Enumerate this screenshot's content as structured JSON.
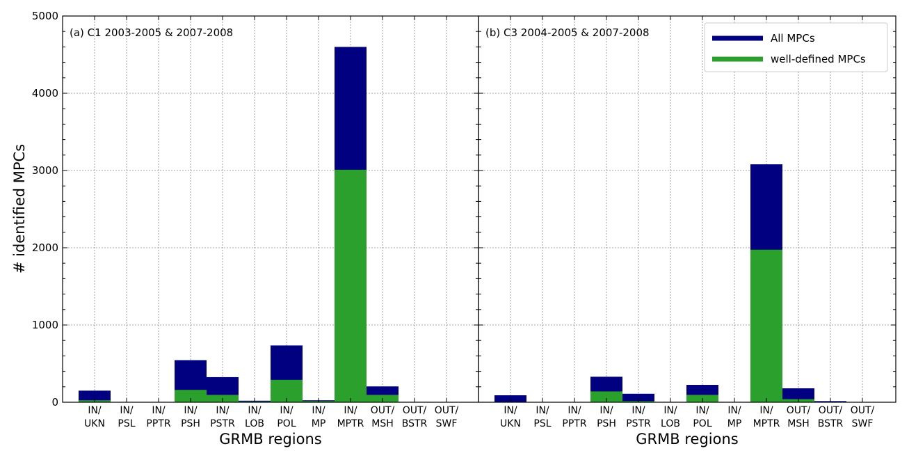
{
  "chart_data": {
    "type": "bar",
    "stacked": "overlay",
    "ylabel": "# identified MPCs",
    "ylim": [
      0,
      5000
    ],
    "yticks": [
      0,
      1000,
      2000,
      3000,
      4000,
      5000
    ],
    "grid": true,
    "legend_placement": "top-right of panel (b)",
    "colors": {
      "all": "#000080",
      "well_defined": "#2ca02c"
    },
    "legend": [
      "All MPCs",
      "well-defined MPCs"
    ],
    "panels": [
      {
        "title": "(a) C1 2003-2005 & 2007-2008",
        "xlabel": "GRMB regions",
        "categories": [
          [
            "IN/",
            "UKN"
          ],
          [
            "IN/",
            "PSL"
          ],
          [
            "IN/",
            "PPTR"
          ],
          [
            "IN/",
            "PSH"
          ],
          [
            "IN/",
            "PSTR"
          ],
          [
            "IN/",
            "LOB"
          ],
          [
            "IN/",
            "POL"
          ],
          [
            "IN/",
            "MP"
          ],
          [
            "IN/",
            "MPTR"
          ],
          [
            "OUT/",
            "MSH"
          ],
          [
            "OUT/",
            "BSTR"
          ],
          [
            "OUT/",
            "SWF"
          ]
        ],
        "series": [
          {
            "name": "All MPCs",
            "values": [
              150,
              0,
              0,
              545,
              325,
              20,
              735,
              25,
              4600,
              205,
              5,
              0
            ]
          },
          {
            "name": "well-defined MPCs",
            "values": [
              25,
              0,
              0,
              160,
              95,
              10,
              290,
              15,
              3010,
              95,
              2,
              0
            ]
          }
        ]
      },
      {
        "title": "(b) C3 2004-2005 & 2007-2008",
        "xlabel": "GRMB regions",
        "categories": [
          [
            "IN/",
            "UKN"
          ],
          [
            "IN/",
            "PSL"
          ],
          [
            "IN/",
            "PPTR"
          ],
          [
            "IN/",
            "PSH"
          ],
          [
            "IN/",
            "PSTR"
          ],
          [
            "IN/",
            "LOB"
          ],
          [
            "IN/",
            "POL"
          ],
          [
            "IN/",
            "MP"
          ],
          [
            "IN/",
            "MPTR"
          ],
          [
            "OUT/",
            "MSH"
          ],
          [
            "OUT/",
            "BSTR"
          ],
          [
            "OUT/",
            "SWF"
          ]
        ],
        "series": [
          {
            "name": "All MPCs",
            "values": [
              90,
              0,
              0,
              330,
              110,
              5,
              225,
              5,
              3080,
              180,
              15,
              0
            ]
          },
          {
            "name": "well-defined MPCs",
            "values": [
              5,
              0,
              0,
              140,
              15,
              2,
              95,
              2,
              1975,
              40,
              5,
              0
            ]
          }
        ]
      }
    ]
  }
}
